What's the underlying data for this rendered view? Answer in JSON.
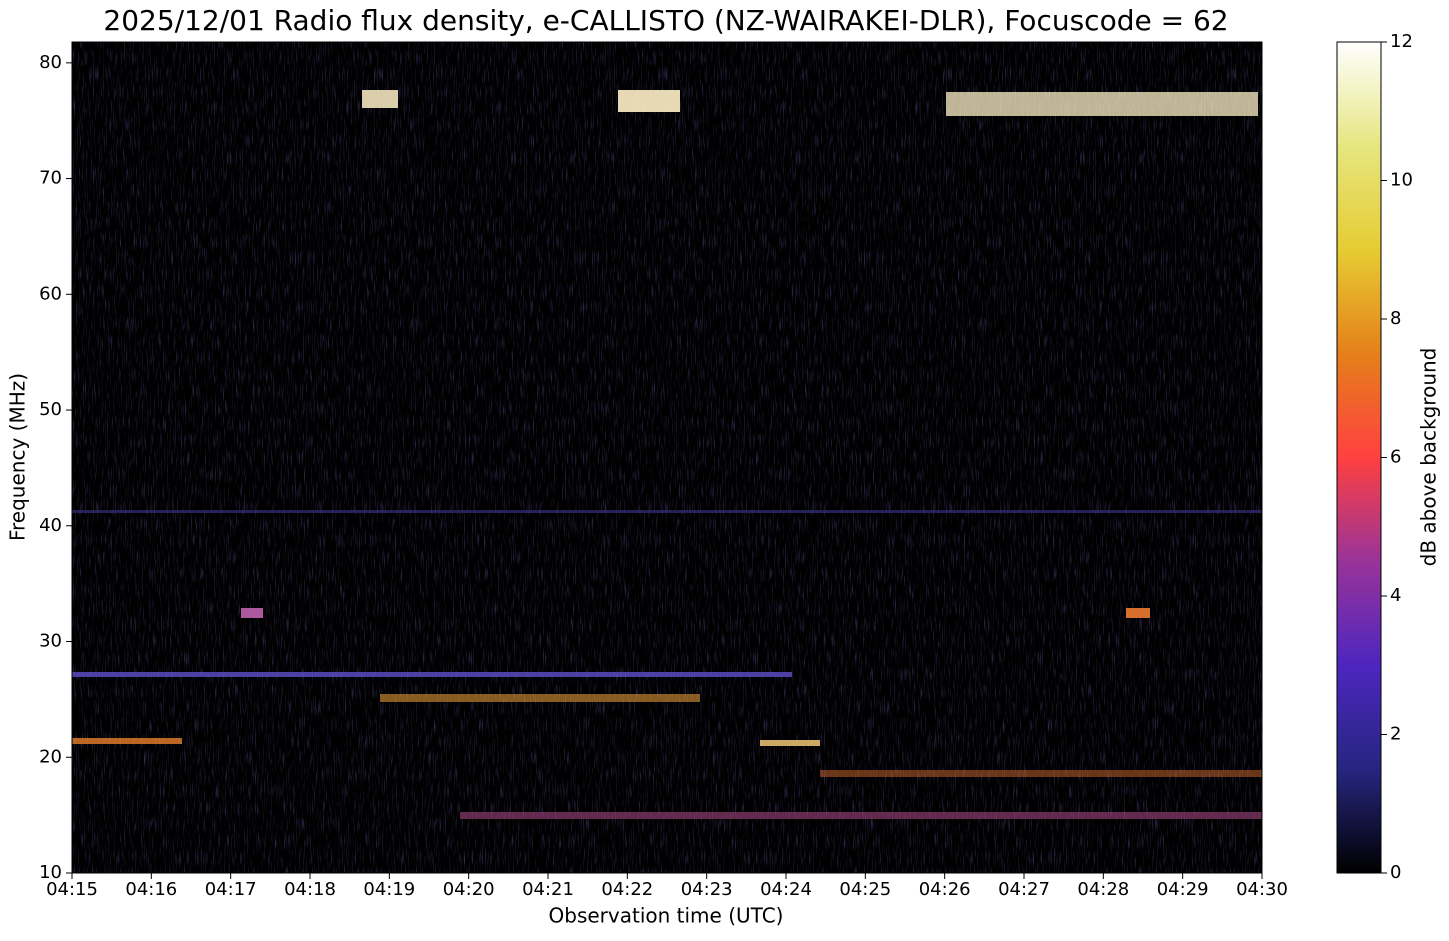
{
  "chart_data": {
    "type": "spectrogram",
    "title": "2025/12/01 Radio flux density, e-CALLISTO (NZ-WAIRAKEI-DLR), Focuscode = 62",
    "xlabel": "Observation time (UTC)",
    "ylabel": "Frequency (MHz)",
    "xlim": [
      "04:15",
      "04:30"
    ],
    "xticks": [
      "04:15",
      "04:16",
      "04:17",
      "04:18",
      "04:19",
      "04:20",
      "04:21",
      "04:22",
      "04:23",
      "04:24",
      "04:25",
      "04:26",
      "04:27",
      "04:28",
      "04:29",
      "04:30"
    ],
    "ylim": [
      10,
      81.8
    ],
    "yticks": [
      10,
      20,
      30,
      40,
      50,
      60,
      70,
      80
    ],
    "colorbar": {
      "label": "dB above background",
      "lim": [
        0,
        12
      ],
      "ticks": [
        0,
        2,
        4,
        6,
        8,
        10,
        12
      ],
      "colormap": "CMRmap"
    }
  }
}
